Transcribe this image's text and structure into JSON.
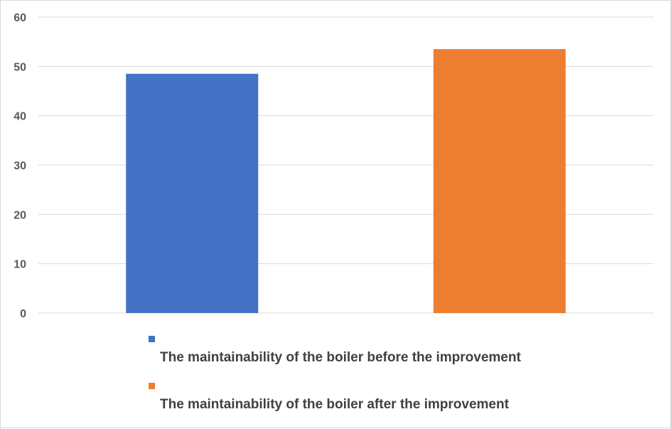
{
  "chart_data": {
    "type": "bar",
    "categories": [
      "The maintainability of the boiler before the improvement",
      "The maintainability of the boiler after the improvement"
    ],
    "values": [
      48.5,
      53.5
    ],
    "colors": [
      "#4472c4",
      "#ed7d31"
    ],
    "ylim": [
      0,
      60
    ],
    "yticks": [
      "0",
      "10",
      "20",
      "30",
      "40",
      "50",
      "60"
    ],
    "grid": true,
    "legend_position": "bottom",
    "legend": [
      "The maintainability of the boiler before the improvement",
      "The maintainability of the boiler after the improvement"
    ]
  }
}
